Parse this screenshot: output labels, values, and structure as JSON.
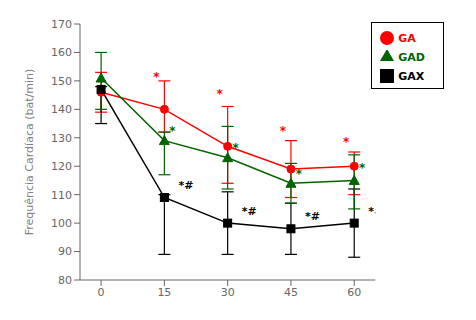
{
  "chart_data": {
    "type": "line",
    "ylabel": "Frequência Cardíaca (bat/min)",
    "x": [
      0,
      15,
      30,
      45,
      60
    ],
    "xlim": [
      -5,
      65
    ],
    "xticks": [
      0,
      15,
      30,
      45,
      60
    ],
    "ylim": [
      80,
      170
    ],
    "yticks": [
      80,
      90,
      100,
      110,
      120,
      130,
      140,
      150,
      160,
      170
    ],
    "grid": false,
    "legend": "upper right",
    "series": [
      {
        "name": "GA",
        "color": "#ff0000",
        "marker": "circle",
        "values": [
          146,
          140,
          127,
          119,
          120
        ],
        "err_lower": [
          7,
          8,
          13,
          10,
          10
        ],
        "err_upper": [
          7,
          10,
          14,
          10,
          5
        ],
        "annotations": [
          {
            "x": 15,
            "y": 150,
            "text": "*",
            "color": "#ff0000"
          },
          {
            "x": 30,
            "y": 144,
            "text": "*",
            "color": "#ff0000"
          },
          {
            "x": 45,
            "y": 131,
            "text": "*",
            "color": "#ff0000"
          },
          {
            "x": 60,
            "y": 127,
            "text": "*",
            "color": "#ff0000"
          }
        ]
      },
      {
        "name": "GAX",
        "color": "#000000",
        "marker": "square",
        "values": [
          147,
          109,
          100,
          98,
          100
        ],
        "err_lower": [
          12,
          20,
          11,
          9,
          12
        ],
        "err_upper": [
          1,
          1,
          11,
          9,
          12
        ],
        "annotations": [
          {
            "x": 15,
            "y": 112,
            "text": "*#",
            "color": "#000000"
          },
          {
            "x": 30,
            "y": 103,
            "text": "*#",
            "color": "#000000"
          },
          {
            "x": 45,
            "y": 101,
            "text": "*#",
            "color": "#000000"
          },
          {
            "x": 60,
            "y": 103,
            "text": "*#",
            "color": "#000000"
          }
        ]
      },
      {
        "name": "GAD",
        "color": "#006400",
        "marker": "triangle",
        "values": [
          151,
          129,
          123,
          114,
          115
        ],
        "err_lower": [
          11,
          12,
          11,
          7,
          10
        ],
        "err_upper": [
          9,
          3,
          11,
          7,
          9
        ],
        "annotations": [
          {
            "x": 15,
            "y": 131,
            "text": "*",
            "color": "#006400"
          },
          {
            "x": 30,
            "y": 125,
            "text": "*",
            "color": "#006400"
          },
          {
            "x": 45,
            "y": 116,
            "text": "*",
            "color": "#006400"
          },
          {
            "x": 60,
            "y": 118,
            "text": "*",
            "color": "#006400"
          }
        ]
      }
    ]
  }
}
